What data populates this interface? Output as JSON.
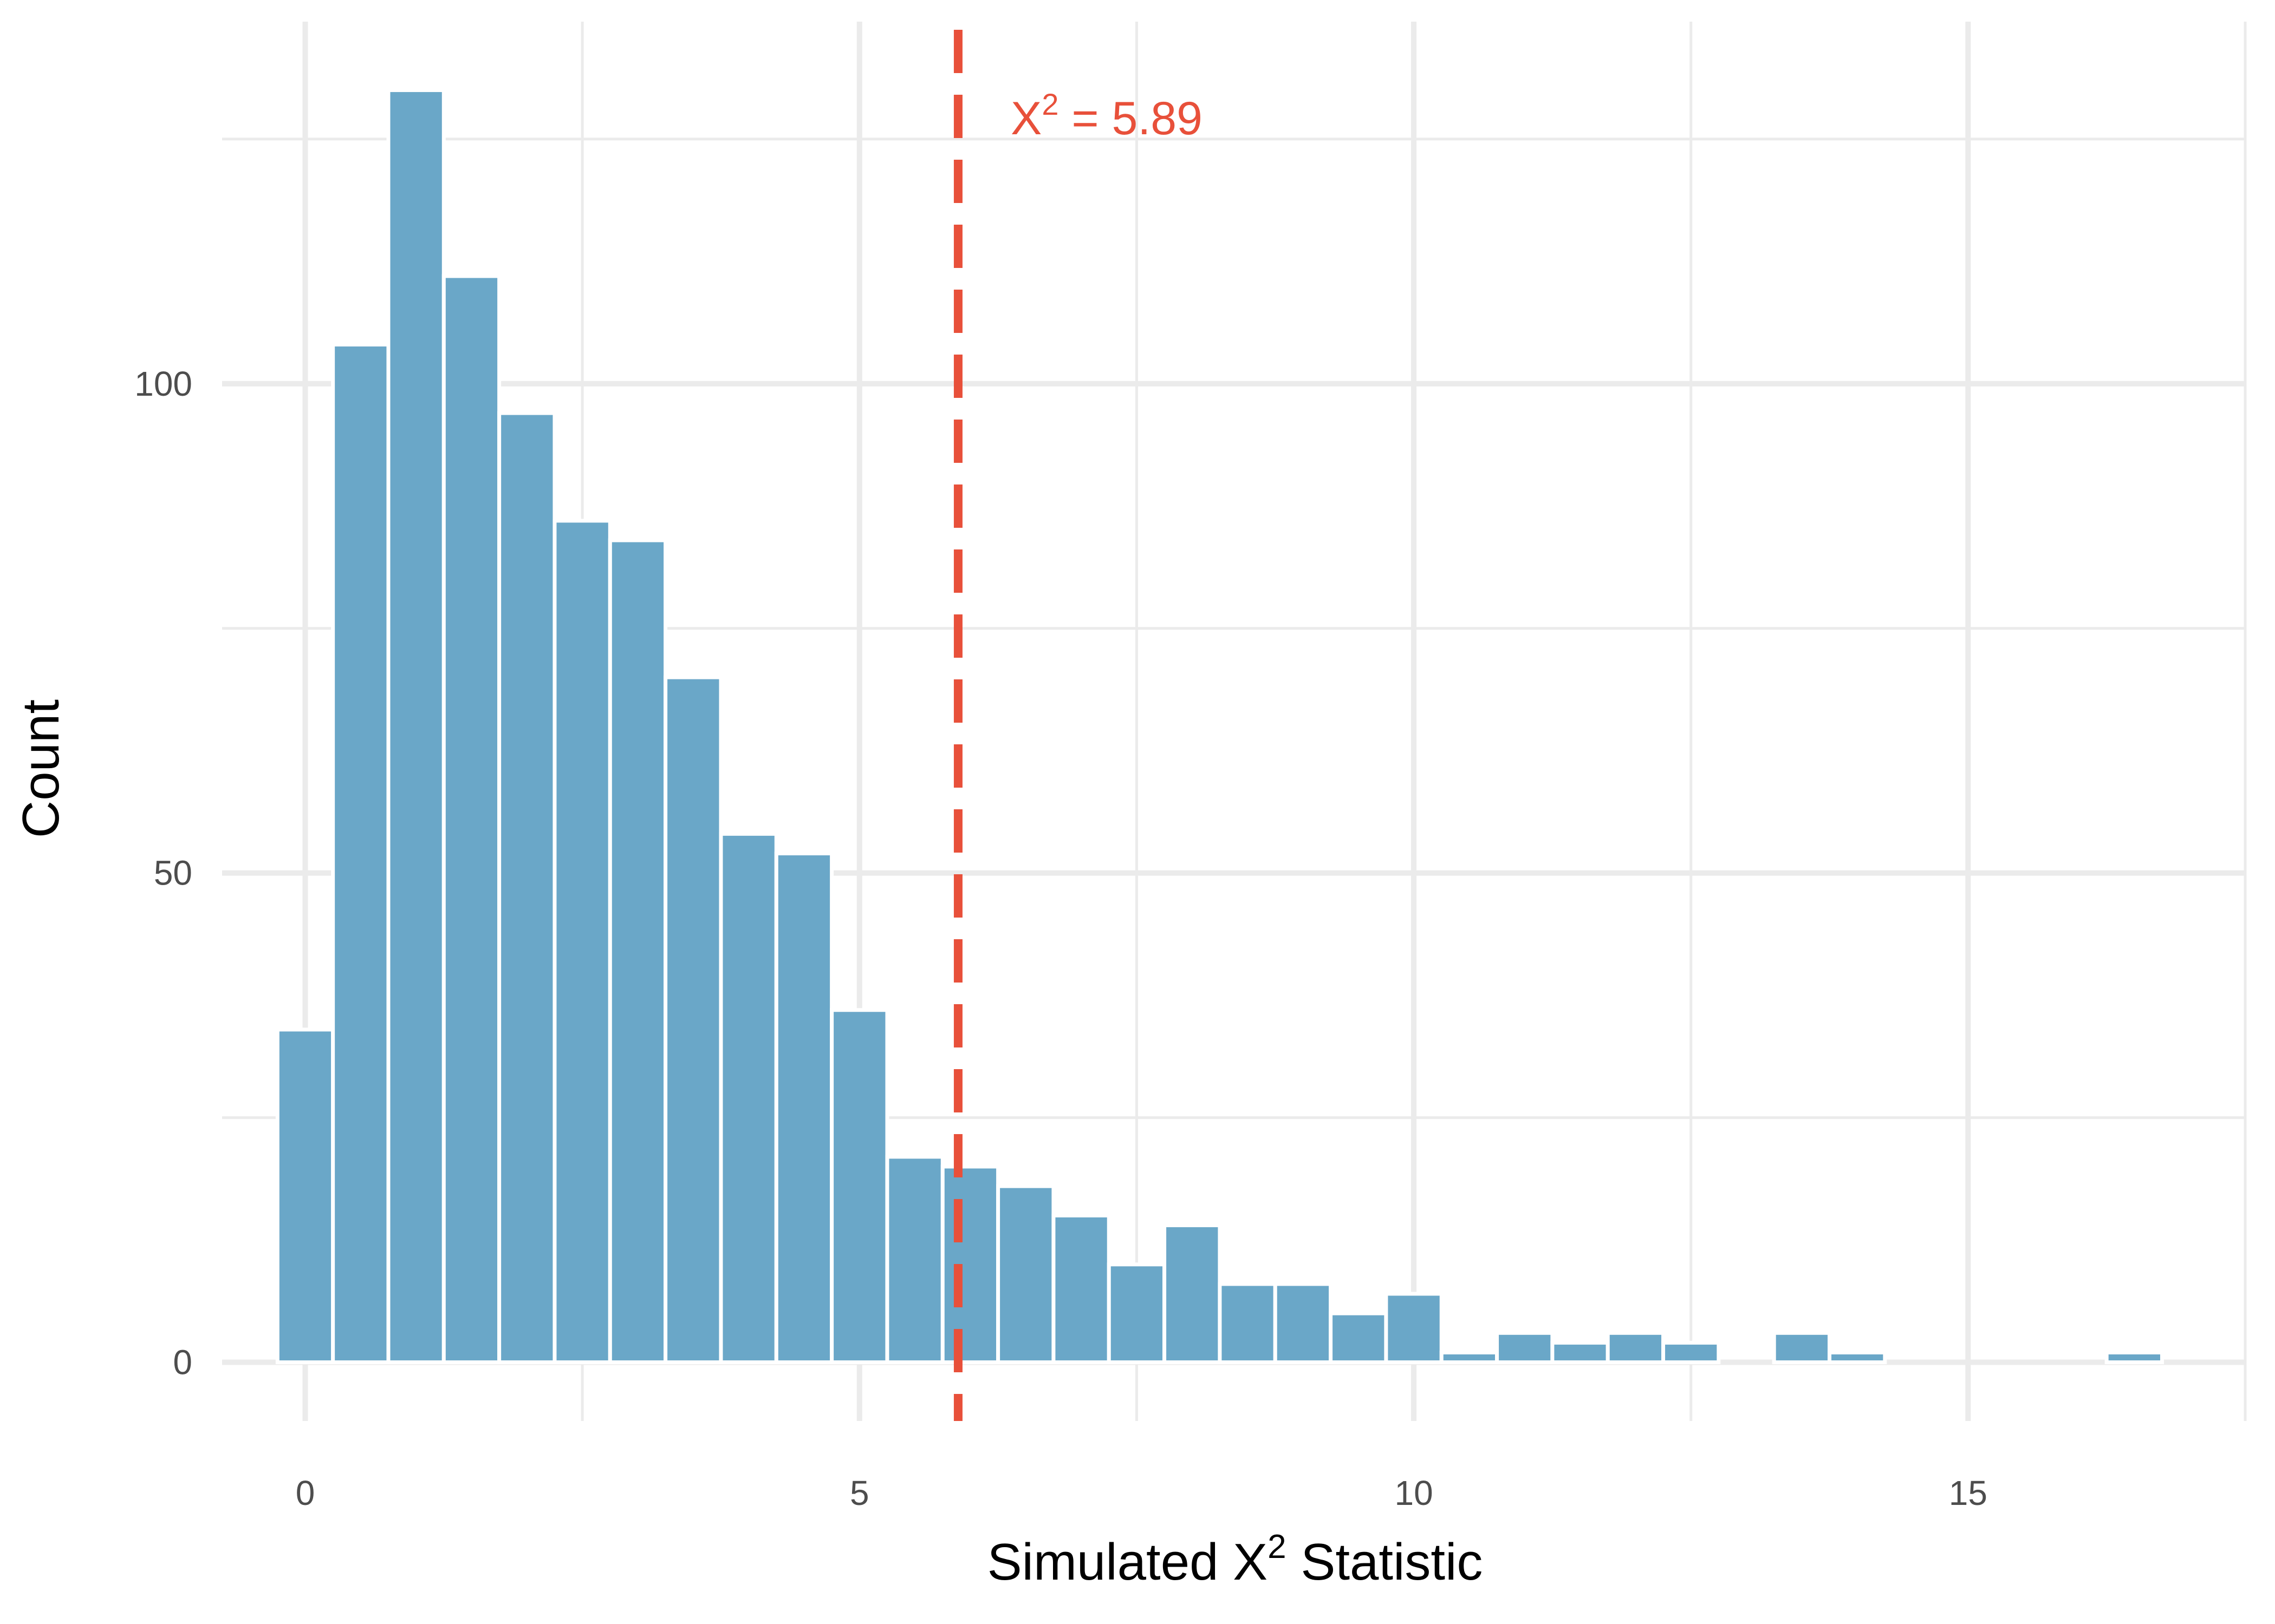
{
  "chart_data": {
    "type": "bar",
    "title": "",
    "xlabel": {
      "base": "Simulated X",
      "sup": "2",
      "rest": " Statistic"
    },
    "ylabel": "Count",
    "bin_width": 0.5,
    "x_centers": [
      0,
      0.5,
      1,
      1.5,
      2,
      2.5,
      3,
      3.5,
      4,
      4.5,
      5,
      5.5,
      6,
      6.5,
      7,
      7.5,
      8,
      8.5,
      9,
      9.5,
      10,
      10.5,
      11,
      11.5,
      12,
      12.5,
      13,
      13.5,
      14,
      14.5,
      15,
      15.5,
      16,
      16.5
    ],
    "values": [
      34,
      104,
      130,
      111,
      97,
      86,
      84,
      70,
      54,
      52,
      36,
      21,
      20,
      18,
      15,
      10,
      14,
      8,
      8,
      5,
      7,
      1,
      3,
      2,
      3,
      2,
      0,
      3,
      1,
      0,
      0,
      0,
      0,
      1
    ],
    "xlim": [
      -0.75,
      17.5
    ],
    "ylim": [
      -6,
      137
    ],
    "x_ticks": [
      0,
      5,
      10,
      15
    ],
    "x_tick_labels": [
      "0",
      "5",
      "10",
      "15"
    ],
    "y_ticks": [
      0,
      50,
      100
    ],
    "y_tick_labels": [
      "0",
      "50",
      "100"
    ],
    "y_minor_ticks": [
      25,
      75,
      125
    ],
    "x_minor_ticks": [
      2.5,
      7.5,
      12.5,
      17.5
    ],
    "grid": true,
    "legend": "none",
    "reference_line": {
      "x": 5.89,
      "label_base": "X",
      "label_sup": "2",
      "label_rest": " = 5.89",
      "color": "#e8503a",
      "style": "dashed"
    },
    "colors": {
      "bar": "#6aa7c8",
      "grid": "#ebebeb",
      "bar_gap": "#ffffff"
    }
  }
}
